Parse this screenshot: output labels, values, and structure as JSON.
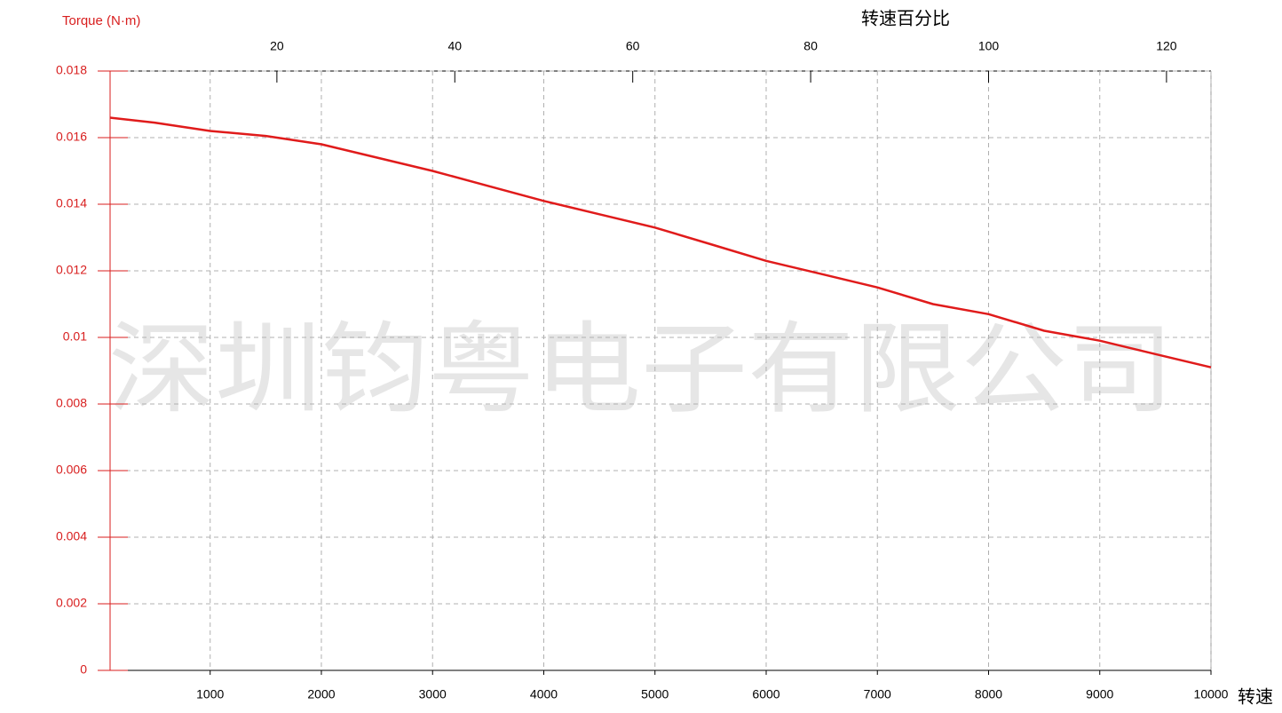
{
  "chart_data": {
    "type": "line",
    "title": "转速百分比",
    "ylabel": "Torque (N·m)",
    "xlabel": "转速",
    "watermark": "深圳钧粤电子有限公司",
    "x": [
      100,
      500,
      1000,
      1500,
      2000,
      2500,
      3000,
      3500,
      4000,
      4500,
      5000,
      5500,
      6000,
      6500,
      7000,
      7500,
      8000,
      8500,
      9000,
      9500,
      10000
    ],
    "values": [
      0.0166,
      0.01645,
      0.0162,
      0.01605,
      0.0158,
      0.0154,
      0.015,
      0.01455,
      0.0141,
      0.0137,
      0.0133,
      0.0128,
      0.0123,
      0.0119,
      0.0115,
      0.011,
      0.0107,
      0.0102,
      0.0099,
      0.0095,
      0.0091
    ],
    "color": "#e01b1b",
    "xlim": [
      100,
      10000
    ],
    "xticks": [
      1000,
      2000,
      3000,
      4000,
      5000,
      6000,
      7000,
      8000,
      9000,
      10000
    ],
    "x2lim": [
      1.25,
      125
    ],
    "x2ticks": [
      20,
      40,
      60,
      80,
      100,
      120
    ],
    "ylim": [
      0,
      0.018
    ],
    "yticks": [
      0,
      0.002,
      0.004,
      0.006,
      0.008,
      0.01,
      0.012,
      0.014,
      0.016,
      0.018
    ],
    "grid": true
  }
}
